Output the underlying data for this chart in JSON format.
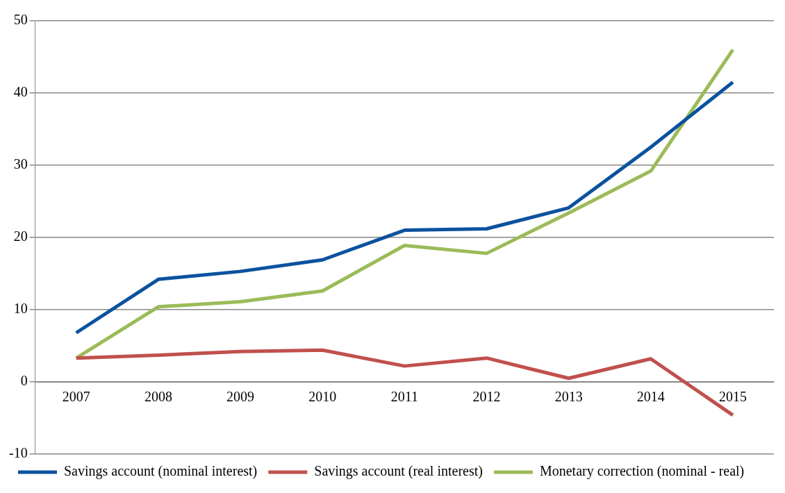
{
  "chart_data": {
    "type": "line",
    "categories": [
      "2007",
      "2008",
      "2009",
      "2010",
      "2011",
      "2012",
      "2013",
      "2014",
      "2015"
    ],
    "series": [
      {
        "name": "Savings account (nominal interest)",
        "color": "#0b529e",
        "values": [
          6.8,
          14.2,
          15.3,
          16.9,
          21.0,
          21.2,
          24.1,
          32.5,
          41.5
        ]
      },
      {
        "name": "Savings account (real interest)",
        "color": "#c0504d",
        "values": [
          3.3,
          3.7,
          4.2,
          4.4,
          2.2,
          3.3,
          0.5,
          3.2,
          -4.6
        ]
      },
      {
        "name": "Monetary correction (nominal - real)",
        "color": "#9bbb59",
        "values": [
          3.3,
          10.4,
          11.1,
          12.6,
          18.9,
          17.8,
          23.4,
          29.2,
          46.0
        ]
      }
    ],
    "ylim": [
      -10,
      50
    ],
    "yticks": [
      -10,
      0,
      10,
      20,
      30,
      40,
      50
    ],
    "grid": "y",
    "legend": "bottom",
    "marker": "none",
    "line_style": "solid"
  }
}
